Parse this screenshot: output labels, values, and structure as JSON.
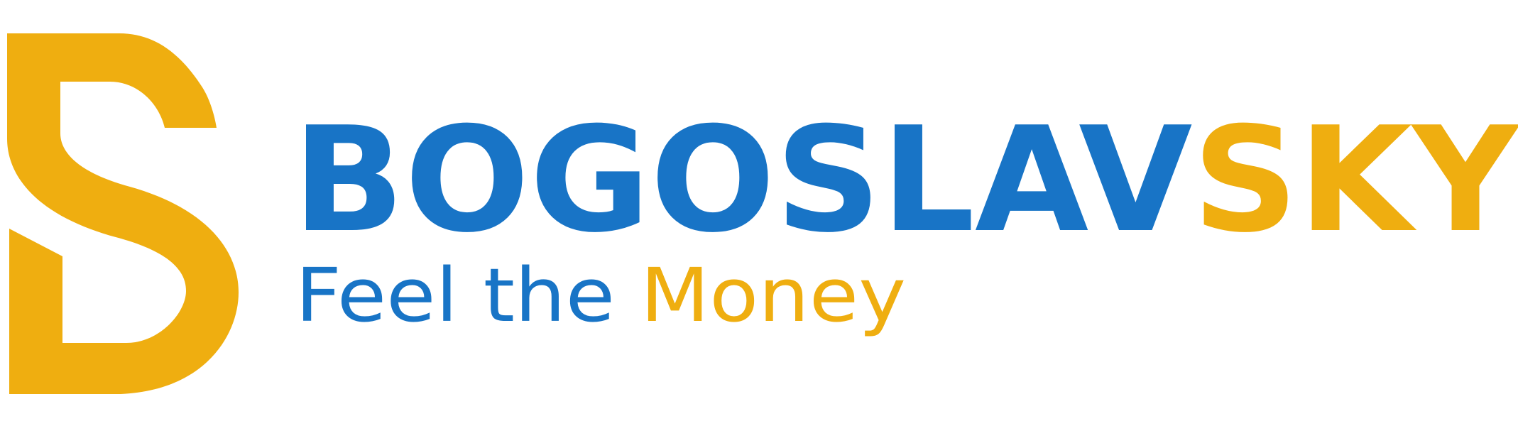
{
  "brand": {
    "name_part_1": "BOGOSLAV",
    "name_part_2": "SKY",
    "tagline_part_1": "Feel the ",
    "tagline_part_2": "Money",
    "colors": {
      "blue": "#1874c6",
      "gold": "#efae10",
      "background": "#ffffff"
    },
    "mark_icon": "s-monogram-icon"
  }
}
